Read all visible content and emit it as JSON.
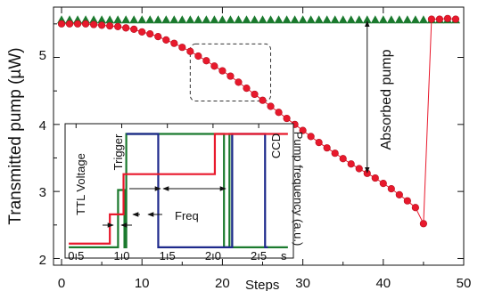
{
  "chart_data": [
    {
      "type": "scatter",
      "xlabel": "Steps",
      "ylabel": "Transmitted pump (µW)",
      "xlim": [
        -1,
        50
      ],
      "ylim": [
        1.9,
        5.75
      ],
      "x_ticks": [
        "0",
        "10",
        "20",
        "30",
        "40",
        "50"
      ],
      "y_ticks": [
        "2",
        "3",
        "4",
        "5"
      ],
      "grid": false,
      "colors": {
        "transmitted": "#e8192c",
        "reference": "#1b7a2e"
      },
      "series": [
        {
          "marker": "triangle",
          "x": [
            0,
            1,
            2,
            3,
            4,
            5,
            6,
            7,
            8,
            9,
            10,
            11,
            12,
            13,
            14,
            15,
            16,
            17,
            18,
            19,
            20,
            21,
            22,
            23,
            24,
            25,
            26,
            27,
            28,
            29,
            30,
            31,
            32,
            33,
            34,
            35,
            36,
            37,
            38,
            39,
            40,
            41,
            42,
            43,
            44,
            45,
            46,
            47,
            48,
            49
          ],
          "y": [
            5.56,
            5.56,
            5.56,
            5.56,
            5.56,
            5.56,
            5.56,
            5.56,
            5.56,
            5.56,
            5.56,
            5.56,
            5.56,
            5.56,
            5.56,
            5.56,
            5.56,
            5.56,
            5.56,
            5.56,
            5.56,
            5.56,
            5.56,
            5.56,
            5.56,
            5.56,
            5.56,
            5.56,
            5.56,
            5.56,
            5.56,
            5.56,
            5.56,
            5.56,
            5.56,
            5.56,
            5.56,
            5.56,
            5.56,
            5.56,
            5.56,
            5.56,
            5.56,
            5.56,
            5.56,
            5.56,
            5.56,
            5.56,
            5.56,
            5.56
          ]
        },
        {
          "marker": "circle",
          "x": [
            0,
            1,
            2,
            3,
            4,
            5,
            6,
            7,
            8,
            9,
            10,
            11,
            12,
            13,
            14,
            15,
            16,
            17,
            18,
            19,
            20,
            21,
            22,
            23,
            24,
            25,
            26,
            27,
            28,
            29,
            30,
            31,
            32,
            33,
            34,
            35,
            36,
            37,
            38,
            39,
            40,
            41,
            42,
            43,
            44,
            45,
            46,
            47,
            48,
            49
          ],
          "y": [
            5.5,
            5.5,
            5.5,
            5.5,
            5.49,
            5.48,
            5.47,
            5.46,
            5.44,
            5.42,
            5.38,
            5.35,
            5.31,
            5.26,
            5.21,
            5.15,
            5.09,
            5.02,
            4.95,
            4.87,
            4.8,
            4.72,
            4.63,
            4.54,
            4.45,
            4.36,
            4.27,
            4.18,
            4.09,
            4.0,
            3.91,
            3.82,
            3.73,
            3.65,
            3.57,
            3.49,
            3.41,
            3.34,
            3.27,
            3.2,
            3.12,
            3.04,
            2.95,
            2.86,
            2.76,
            2.52,
            5.57,
            5.57,
            5.58,
            5.57
          ]
        }
      ],
      "annotations": [
        "Absorbed pump"
      ],
      "arrow": {
        "x": 38,
        "from": 5.54,
        "to": 3.28
      },
      "highlight_box": {
        "x": [
          16,
          26
        ],
        "y": [
          4.35,
          5.2
        ]
      }
    },
    {
      "type": "line",
      "xlabel": "s",
      "ylabel": "Pump frequency (a.u.)",
      "xlim": [
        0.38,
        2.88
      ],
      "ylim": [
        0,
        1
      ],
      "x_ticks": [
        "0.5",
        "1.0",
        "1.5",
        "2.0",
        "2.5"
      ],
      "annotations": [
        "TTL Voltage",
        "Trigger",
        "Freq",
        "CCD"
      ],
      "colors": {
        "freq": "#e8192c",
        "trigger": "#1b7a2e",
        "ccd": "#1e2a8c"
      },
      "series": [
        {
          "x": [
            0.42,
            0.87,
            0.87,
            1.02,
            1.02,
            2.02,
            2.02,
            2.82
          ],
          "y": [
            0.06,
            0.06,
            0.3,
            0.3,
            0.63,
            0.63,
            0.96,
            0.96
          ]
        },
        {
          "x": [
            0.42,
            0.96,
            0.96,
            1.03,
            1.03,
            1.05,
            1.05,
            2.12,
            2.12,
            2.18,
            2.18,
            2.21,
            2.21,
            2.82
          ],
          "y": [
            0.03,
            0.03,
            0.5,
            0.5,
            0.03,
            0.03,
            0.96,
            0.96,
            0.03,
            0.03,
            0.96,
            0.96,
            0.03,
            0.03
          ]
        },
        {
          "x": [
            1.05,
            1.4,
            1.4,
            1.43,
            1.43,
            2.21,
            2.21,
            2.57,
            2.57,
            2.6
          ],
          "y": [
            0.96,
            0.96,
            0.03,
            0.03,
            0.03,
            0.03,
            0.96,
            0.96,
            0.03,
            0.03
          ]
        }
      ]
    }
  ]
}
